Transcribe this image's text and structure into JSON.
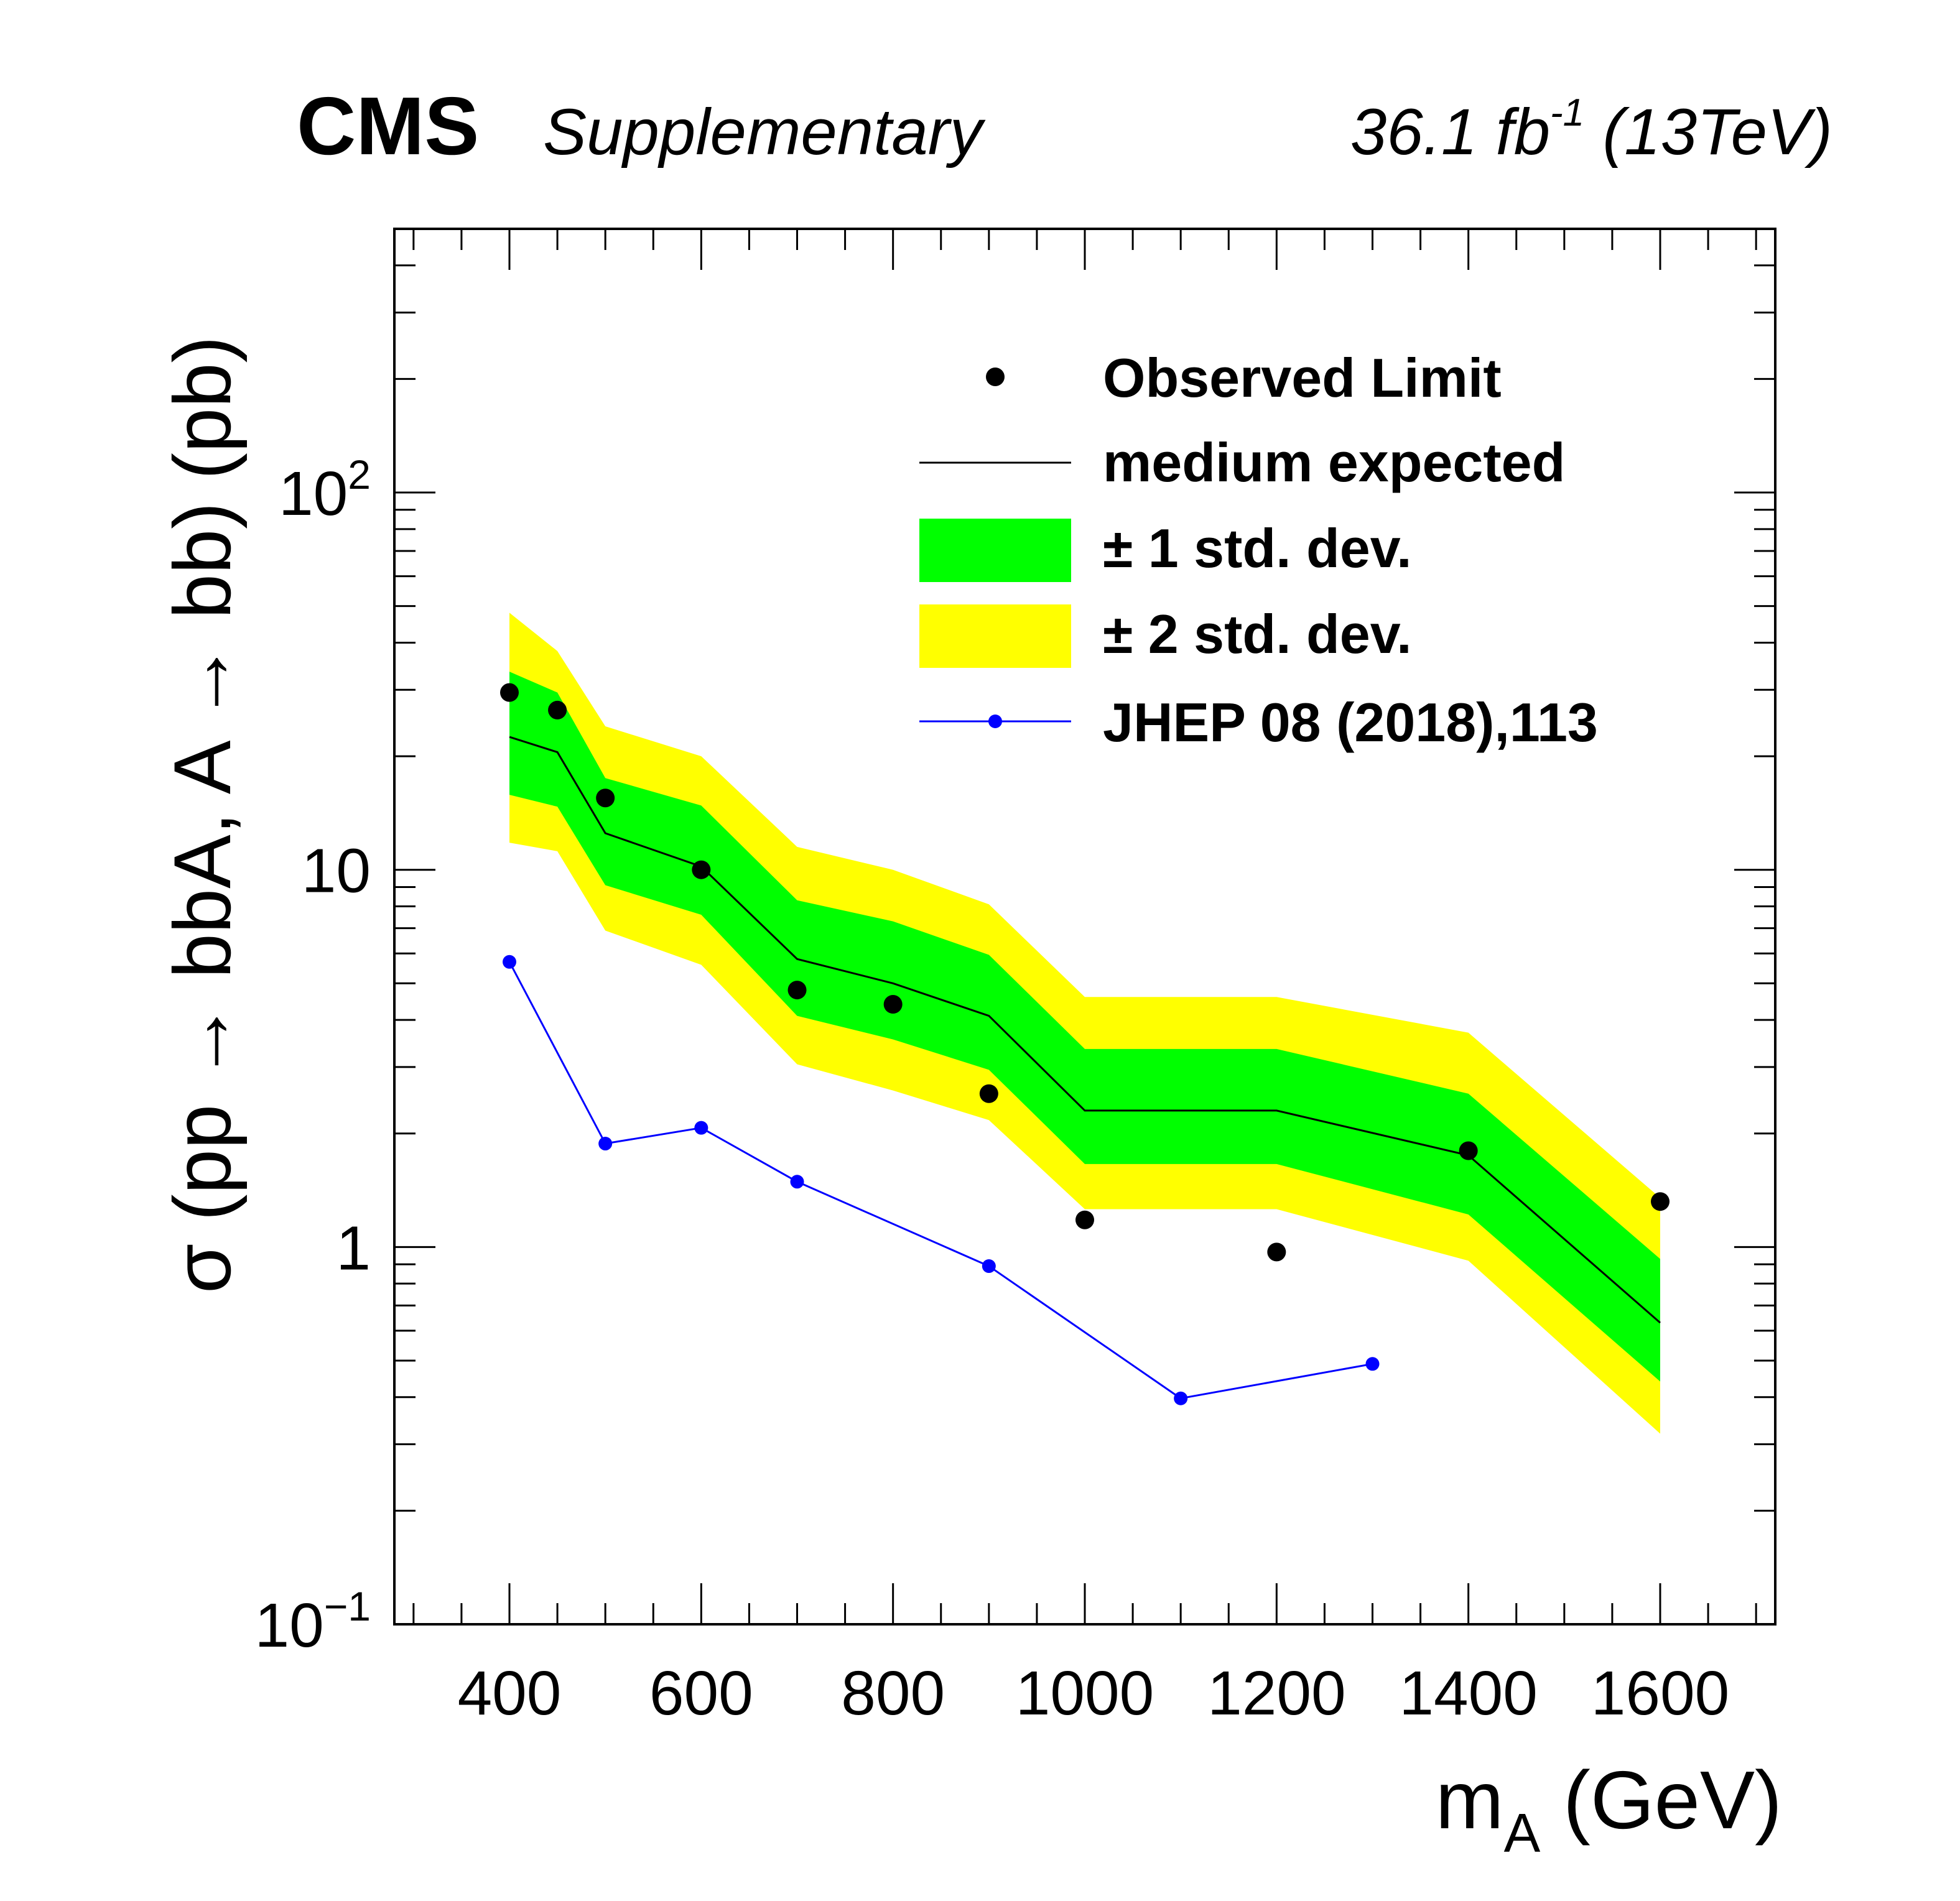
{
  "header": {
    "experiment": "CMS",
    "qualifier": "Supplementary",
    "lumi_prefix": "36.1 fb",
    "lumi_exp": "-1",
    "energy": " (13TeV)"
  },
  "legend": {
    "observed": "Observed Limit",
    "expected": "medium expected",
    "band1": "± 1 std. dev.",
    "band2": "± 2 std. dev.",
    "ref": "JHEP 08 (2018),113"
  },
  "colors": {
    "band1": "#00ff00",
    "band2": "#ffff00",
    "observed": "#000000",
    "expected": "#000000",
    "ref": "#0000ff"
  },
  "chart_data": {
    "type": "line",
    "y_scale": "log",
    "xlim": [
      280,
      1720
    ],
    "ylim": [
      0.1,
      500
    ],
    "xlabel": {
      "main": "m",
      "sub": "A",
      "unit": " (GeV)"
    },
    "ylabel": "σ (pp → bbA, A → bb) (pb)",
    "x_ticks": [
      400,
      600,
      800,
      1000,
      1200,
      1400,
      1600
    ],
    "x_tick_labels": [
      "400",
      "600",
      "800",
      "1000",
      "1200",
      "1400",
      "1600"
    ],
    "y_ticks": [
      0.1,
      1,
      10,
      100
    ],
    "y_tick_labels": [
      {
        "base": "10",
        "exp": "−1"
      },
      {
        "base": "1",
        "exp": ""
      },
      {
        "base": "10",
        "exp": ""
      },
      {
        "base": "10",
        "exp": "2"
      }
    ],
    "legend_position": "top-right",
    "x": [
      400,
      450,
      500,
      600,
      700,
      800,
      900,
      1000,
      1200,
      1400,
      1600
    ],
    "series": [
      {
        "name": "Observed Limit",
        "kind": "points",
        "values": [
          29.5,
          26.5,
          15.5,
          10.0,
          4.8,
          4.4,
          2.55,
          1.18,
          0.97,
          1.8,
          1.32
        ]
      },
      {
        "name": "medium expected",
        "kind": "line",
        "values": [
          22.5,
          20.5,
          12.5,
          10.2,
          5.8,
          5.0,
          4.1,
          2.3,
          2.3,
          1.75,
          0.63
        ]
      },
      {
        "name": "± 1 std. dev.",
        "kind": "band",
        "lower": [
          15.8,
          14.7,
          9.1,
          7.6,
          4.1,
          3.55,
          2.95,
          1.66,
          1.66,
          1.22,
          0.44
        ],
        "upper": [
          33.5,
          29.5,
          17.5,
          14.8,
          8.3,
          7.3,
          5.95,
          3.35,
          3.35,
          2.55,
          0.93
        ]
      },
      {
        "name": "± 2 std. dev.",
        "kind": "band",
        "lower": [
          11.8,
          11.2,
          6.9,
          5.6,
          3.05,
          2.6,
          2.17,
          1.26,
          1.26,
          0.92,
          0.32
        ],
        "upper": [
          48.0,
          38.0,
          24.0,
          20.0,
          11.5,
          10.0,
          8.1,
          4.6,
          4.6,
          3.7,
          1.35
        ]
      },
      {
        "name": "JHEP 08 (2018),113",
        "kind": "line-points",
        "x": [
          400,
          500,
          600,
          700,
          900,
          1100,
          1300
        ],
        "values": [
          5.7,
          1.88,
          2.07,
          1.49,
          0.89,
          0.397,
          0.49
        ]
      }
    ]
  }
}
